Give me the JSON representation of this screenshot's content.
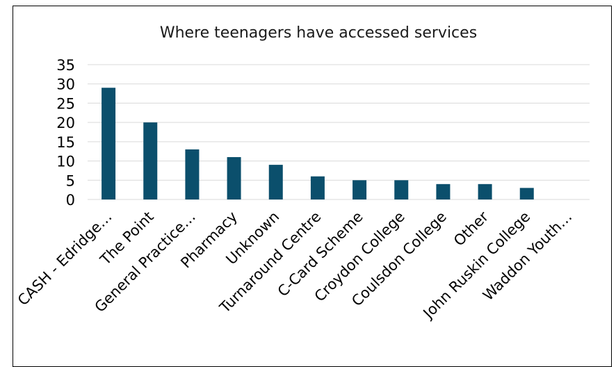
{
  "chart_data": {
    "type": "bar",
    "title": "Where teenagers have accessed services",
    "xlabel": "",
    "ylabel": "",
    "categories": [
      "CASH - Edridge…",
      "The Point",
      "General Practice…",
      "Pharmacy",
      "Unknown",
      "Turnaround Centre",
      "C-Card Scheme",
      "Croydon College",
      "Coulsdon College",
      "Other",
      "John Ruskin College",
      "Waddon Youth…"
    ],
    "values": [
      29,
      20,
      13,
      11,
      9,
      6,
      5,
      5,
      4,
      4,
      3,
      0
    ],
    "ylim": [
      0,
      35
    ],
    "yticks": [
      0,
      5,
      10,
      15,
      20,
      25,
      30,
      35
    ],
    "grid": true,
    "legend": "none",
    "bar_color": "#0b4f6c",
    "grid_color": "#d9d9d9"
  }
}
